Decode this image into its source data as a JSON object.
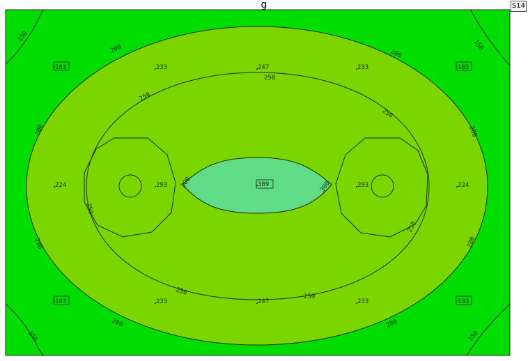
{
  "header": {
    "title": "g",
    "sheet_badge": "S14"
  },
  "colors": {
    "zone_150": "#00dd00",
    "zone_200": "#7bd600",
    "zone_300": "#5fdc85",
    "isoline": "#1b2a10",
    "frame": "#ffffff"
  },
  "isoline_labels": [
    "150",
    "200",
    "250",
    "300"
  ],
  "calc_point_values": [
    "183",
    "233",
    "247",
    "224",
    "293",
    "309"
  ]
}
